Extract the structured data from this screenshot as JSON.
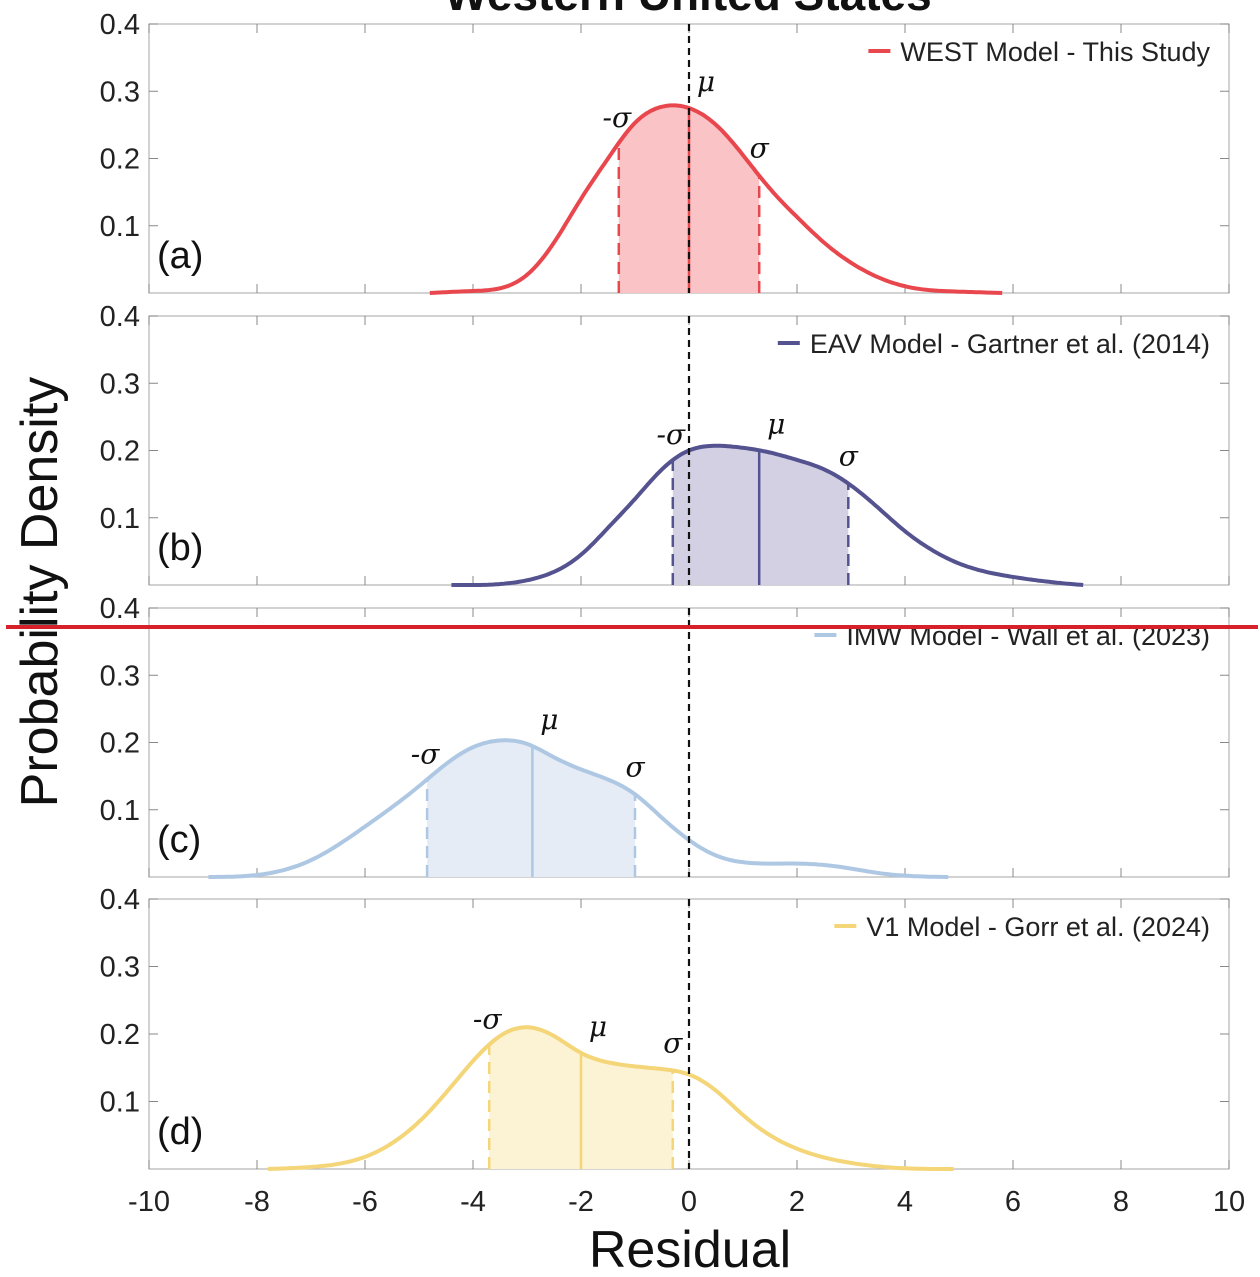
{
  "chart_data": {
    "type": "line",
    "title": "Western United States",
    "xlabel": "Residual",
    "ylabel": "Probability Density",
    "xlim": [
      -10,
      10
    ],
    "ylim": [
      0,
      0.4
    ],
    "x_ticks": [
      -10,
      -8,
      -6,
      -4,
      -2,
      0,
      2,
      4,
      6,
      8,
      10
    ],
    "y_ticks": [
      0.1,
      0.2,
      0.3,
      0.4
    ],
    "grid": false,
    "legend_position": "top-right",
    "reference_line": {
      "x": 0,
      "style": "dashed"
    },
    "sigma_labels": {
      "minus_sigma": "-σ",
      "mu": "μ",
      "sigma": "σ"
    },
    "panels": [
      {
        "label": "(a)",
        "legend": "WEST Model - This Study",
        "color": "#e8474e",
        "fill": "#fac4c6",
        "mean": 0.0,
        "minus_sigma": -1.3,
        "plus_sigma": 1.3,
        "x": [
          -4.8,
          -4,
          -3,
          -2.5,
          -2,
          -1.5,
          -1,
          -0.5,
          0,
          0.5,
          1,
          1.5,
          2,
          2.5,
          3,
          4,
          5,
          5.8
        ],
        "y": [
          0,
          0.003,
          0.027,
          0.075,
          0.14,
          0.2,
          0.253,
          0.277,
          0.275,
          0.25,
          0.205,
          0.155,
          0.113,
          0.075,
          0.045,
          0.01,
          0.002,
          0
        ]
      },
      {
        "label": "(b)",
        "legend": "EAV Model - Gartner et al. (2014)",
        "color": "#55538f",
        "fill": "#d3d0e4",
        "mean": 1.3,
        "minus_sigma": -0.3,
        "plus_sigma": 2.95,
        "x": [
          -4.4,
          -3,
          -2,
          -1.5,
          -1,
          -0.5,
          0,
          0.5,
          1,
          1.5,
          2,
          2.5,
          3,
          3.5,
          4,
          4.5,
          5,
          6,
          7,
          7.3
        ],
        "y": [
          0,
          0.007,
          0.045,
          0.085,
          0.128,
          0.172,
          0.2,
          0.207,
          0.204,
          0.197,
          0.186,
          0.172,
          0.148,
          0.115,
          0.08,
          0.052,
          0.032,
          0.012,
          0.002,
          0
        ]
      },
      {
        "label": "(c)",
        "legend": "IMW Model - Wall et al. (2023)",
        "color": "#aec8e4",
        "fill": "#e5ecf6",
        "mean": -2.9,
        "minus_sigma": -4.85,
        "plus_sigma": -1.0,
        "x": [
          -8.9,
          -8,
          -7,
          -6,
          -5,
          -4.5,
          -4,
          -3.5,
          -3,
          -2.5,
          -2,
          -1.5,
          -1,
          -0.5,
          0,
          0.5,
          1,
          2,
          2.8,
          3.5,
          4,
          4.8
        ],
        "y": [
          0,
          0.003,
          0.025,
          0.075,
          0.135,
          0.168,
          0.193,
          0.203,
          0.198,
          0.178,
          0.16,
          0.145,
          0.123,
          0.088,
          0.055,
          0.032,
          0.022,
          0.02,
          0.015,
          0.006,
          0.002,
          0
        ]
      },
      {
        "label": "(d)",
        "legend": "V1 Model - Gorr et al. (2024)",
        "color": "#f4d577",
        "fill": "#fbf3d3",
        "mean": -2.0,
        "minus_sigma": -3.7,
        "plus_sigma": -0.3,
        "x": [
          -7.8,
          -7,
          -6,
          -5,
          -4.5,
          -4,
          -3.5,
          -3,
          -2.5,
          -2,
          -1.5,
          -1,
          -0.5,
          0,
          0.5,
          1,
          1.5,
          2,
          3,
          4,
          4.9
        ],
        "y": [
          0,
          0.003,
          0.018,
          0.07,
          0.113,
          0.16,
          0.197,
          0.21,
          0.197,
          0.172,
          0.158,
          0.152,
          0.148,
          0.14,
          0.116,
          0.08,
          0.05,
          0.03,
          0.009,
          0.001,
          0
        ]
      }
    ]
  },
  "overlay": {
    "color": "#d6202a"
  }
}
